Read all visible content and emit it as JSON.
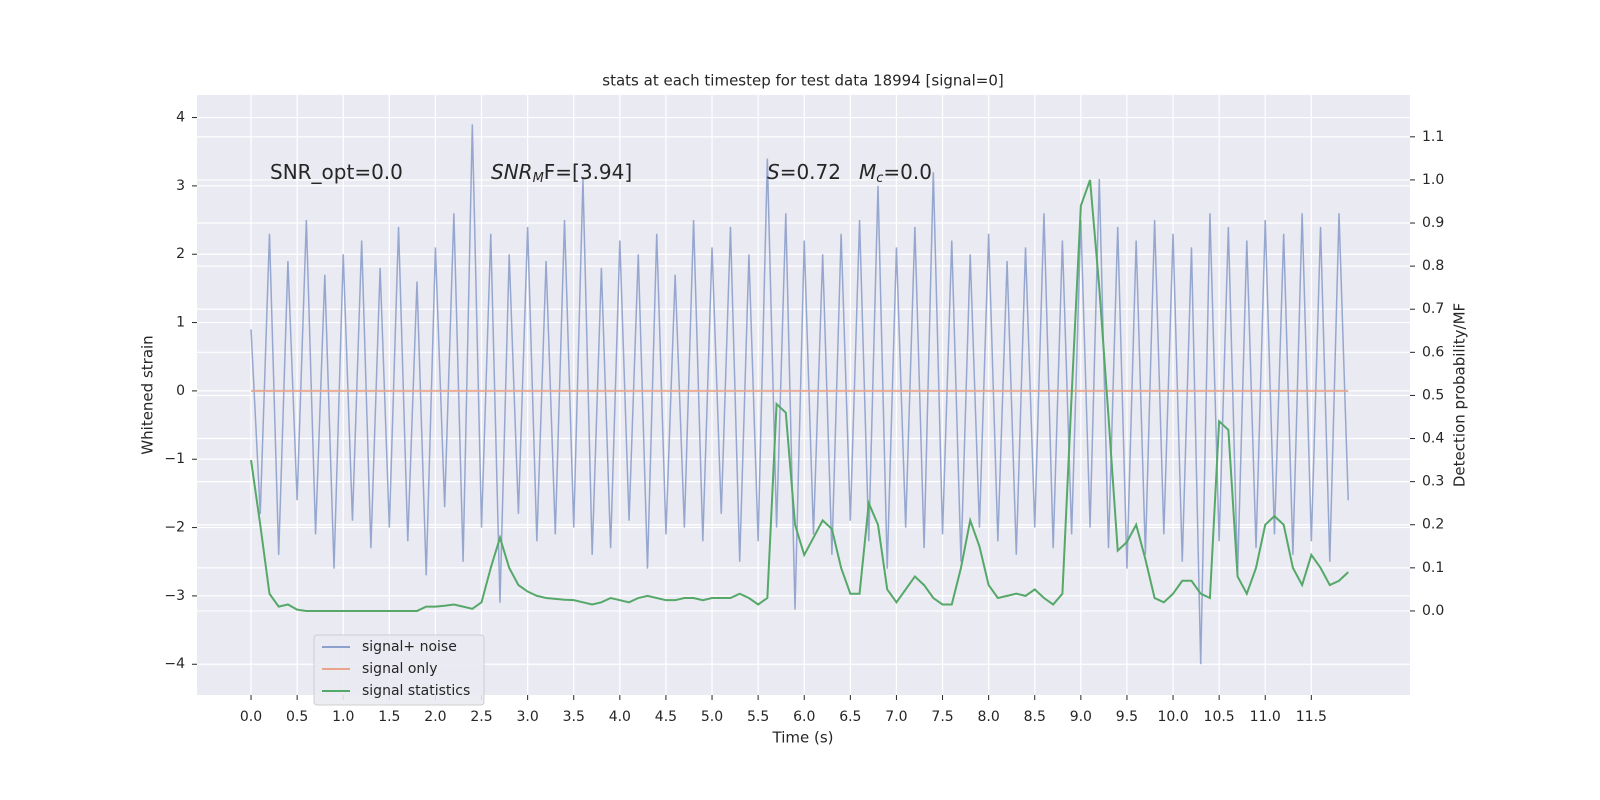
{
  "chart_data": {
    "type": "line",
    "title": "stats at each timestep for test data 18994 [signal=0]",
    "xlabel": "Time (s)",
    "ylabel": "Whitened strain",
    "y2label": "Detection probability/MF",
    "annotations": [
      {
        "text": "SNR_opt=0.0"
      },
      {
        "italic": "SNR",
        "sub": "M",
        "rest": "F=[3.94]"
      },
      {
        "italic": "S",
        "rest": "=0.72"
      },
      {
        "italic": "M",
        "sub": "c",
        "rest": "=0.0"
      }
    ],
    "x": [
      0,
      0.1,
      0.2,
      0.3,
      0.4,
      0.5,
      0.6,
      0.7,
      0.8,
      0.9,
      1,
      1.1,
      1.2,
      1.3,
      1.4,
      1.5,
      1.6,
      1.7,
      1.8,
      1.9,
      2,
      2.1,
      2.2,
      2.3,
      2.4,
      2.5,
      2.6,
      2.7,
      2.8,
      2.9,
      3,
      3.1,
      3.2,
      3.3,
      3.4,
      3.5,
      3.6,
      3.7,
      3.8,
      3.9,
      4,
      4.1,
      4.2,
      4.3,
      4.4,
      4.5,
      4.6,
      4.7,
      4.8,
      4.9,
      5,
      5.1,
      5.2,
      5.3,
      5.4,
      5.5,
      5.6,
      5.7,
      5.8,
      5.9,
      6,
      6.1,
      6.2,
      6.3,
      6.4,
      6.5,
      6.6,
      6.7,
      6.8,
      6.9,
      7,
      7.1,
      7.2,
      7.3,
      7.4,
      7.5,
      7.6,
      7.7,
      7.8,
      7.9,
      8,
      8.1,
      8.2,
      8.3,
      8.4,
      8.5,
      8.6,
      8.7,
      8.8,
      8.9,
      9,
      9.1,
      9.2,
      9.3,
      9.4,
      9.5,
      9.6,
      9.7,
      9.8,
      9.9,
      10,
      10.1,
      10.2,
      10.3,
      10.4,
      10.5,
      10.6,
      10.7,
      10.8,
      10.9,
      11,
      11.1,
      11.2,
      11.3,
      11.4,
      11.5,
      11.6,
      11.7,
      11.8,
      11.9
    ],
    "series": [
      {
        "name": "signal+ noise",
        "color": "#8da0cb",
        "values": [
          0.9,
          -1.8,
          2.3,
          -2.4,
          1.9,
          -1.6,
          2.5,
          -2.1,
          1.7,
          -2.6,
          2.0,
          -1.9,
          2.2,
          -2.3,
          1.8,
          -2.0,
          2.4,
          -2.2,
          1.6,
          -2.7,
          2.1,
          -1.7,
          2.6,
          -2.5,
          3.9,
          -2.0,
          2.3,
          -3.1,
          2.0,
          -1.8,
          2.4,
          -2.2,
          1.9,
          -2.1,
          2.5,
          -2.0,
          3.1,
          -2.4,
          1.8,
          -2.3,
          2.2,
          -1.9,
          2.0,
          -2.6,
          2.3,
          -2.1,
          1.7,
          -2.0,
          2.5,
          -2.2,
          2.1,
          -1.8,
          2.4,
          -2.5,
          2.0,
          -2.2,
          3.4,
          -2.0,
          2.6,
          -3.2,
          2.2,
          -2.1,
          2.0,
          -2.4,
          2.3,
          -1.9,
          2.5,
          -2.2,
          3.0,
          -2.6,
          2.1,
          -2.0,
          2.4,
          -2.3,
          3.2,
          -2.1,
          2.2,
          -2.5,
          2.0,
          -2.0,
          2.3,
          -2.2,
          1.9,
          -2.4,
          2.1,
          -2.0,
          2.6,
          -2.3,
          2.2,
          -2.1,
          2.5,
          -2.0,
          3.1,
          -2.3,
          2.4,
          -2.6,
          2.2,
          -2.4,
          2.5,
          -2.1,
          2.3,
          -2.5,
          2.1,
          -4.0,
          2.6,
          -2.2,
          2.4,
          -2.7,
          2.2,
          -2.3,
          2.5,
          -2.1,
          2.3,
          -2.4,
          2.6,
          -2.2,
          2.4,
          -2.5,
          2.6,
          -1.6
        ]
      },
      {
        "name": "signal only",
        "color": "#e8a58c",
        "values": [
          0,
          0,
          0,
          0,
          0,
          0,
          0,
          0,
          0,
          0,
          0,
          0,
          0,
          0,
          0,
          0,
          0,
          0,
          0,
          0,
          0,
          0,
          0,
          0,
          0,
          0,
          0,
          0,
          0,
          0,
          0,
          0,
          0,
          0,
          0,
          0,
          0,
          0,
          0,
          0,
          0,
          0,
          0,
          0,
          0,
          0,
          0,
          0,
          0,
          0,
          0,
          0,
          0,
          0,
          0,
          0,
          0,
          0,
          0,
          0,
          0,
          0,
          0,
          0,
          0,
          0,
          0,
          0,
          0,
          0,
          0,
          0,
          0,
          0,
          0,
          0,
          0,
          0,
          0,
          0,
          0,
          0,
          0,
          0,
          0,
          0,
          0,
          0,
          0,
          0,
          0,
          0,
          0,
          0,
          0,
          0,
          0,
          0,
          0,
          0,
          0,
          0,
          0,
          0,
          0,
          0,
          0,
          0,
          0,
          0,
          0,
          0,
          0,
          0,
          0,
          0,
          0,
          0,
          0,
          0
        ]
      },
      {
        "name": "signal statistics",
        "color": "#55a868",
        "axis": "y2",
        "values": [
          0.35,
          0.2,
          0.04,
          0.01,
          0.015,
          0.003,
          0,
          0,
          0,
          0,
          0,
          0,
          0,
          0,
          0,
          0,
          0,
          0,
          0,
          0.01,
          0.01,
          0.012,
          0.015,
          0.01,
          0.005,
          0.02,
          0.1,
          0.17,
          0.1,
          0.06,
          0.045,
          0.035,
          0.03,
          0.028,
          0.026,
          0.025,
          0.02,
          0.015,
          0.02,
          0.03,
          0.025,
          0.02,
          0.03,
          0.035,
          0.03,
          0.025,
          0.025,
          0.03,
          0.03,
          0.025,
          0.03,
          0.03,
          0.03,
          0.04,
          0.03,
          0.015,
          0.03,
          0.48,
          0.46,
          0.2,
          0.13,
          0.17,
          0.21,
          0.19,
          0.1,
          0.04,
          0.04,
          0.25,
          0.2,
          0.05,
          0.02,
          0.05,
          0.08,
          0.06,
          0.03,
          0.015,
          0.015,
          0.1,
          0.21,
          0.15,
          0.06,
          0.03,
          0.035,
          0.04,
          0.035,
          0.05,
          0.03,
          0.015,
          0.04,
          0.5,
          0.94,
          1.0,
          0.75,
          0.45,
          0.14,
          0.16,
          0.2,
          0.12,
          0.03,
          0.02,
          0.04,
          0.07,
          0.07,
          0.04,
          0.03,
          0.44,
          0.42,
          0.08,
          0.04,
          0.1,
          0.2,
          0.22,
          0.2,
          0.1,
          0.06,
          0.13,
          0.1,
          0.06,
          0.07,
          0.09
        ]
      }
    ],
    "xlim": [
      -0.586,
      12.57
    ],
    "xticks": [
      {
        "value": 0,
        "label": "0.0"
      },
      {
        "value": 0.5,
        "label": "0.5"
      },
      {
        "value": 1,
        "label": "1.0"
      },
      {
        "value": 1.5,
        "label": "1.5"
      },
      {
        "value": 2,
        "label": "2.0"
      },
      {
        "value": 2.5,
        "label": "2.5"
      },
      {
        "value": 3,
        "label": "3.0"
      },
      {
        "value": 3.5,
        "label": "3.5"
      },
      {
        "value": 4,
        "label": "4.0"
      },
      {
        "value": 4.5,
        "label": "4.5"
      },
      {
        "value": 5,
        "label": "5.0"
      },
      {
        "value": 5.5,
        "label": "5.5"
      },
      {
        "value": 6,
        "label": "6.0"
      },
      {
        "value": 6.5,
        "label": "6.5"
      },
      {
        "value": 7,
        "label": "7.0"
      },
      {
        "value": 7.5,
        "label": "7.5"
      },
      {
        "value": 8,
        "label": "8.0"
      },
      {
        "value": 8.5,
        "label": "8.5"
      },
      {
        "value": 9,
        "label": "9.0"
      },
      {
        "value": 9.5,
        "label": "9.5"
      },
      {
        "value": 10,
        "label": "10.0"
      },
      {
        "value": 10.5,
        "label": "10.5"
      },
      {
        "value": 11,
        "label": "11.0"
      },
      {
        "value": 11.5,
        "label": "11.5"
      }
    ],
    "ylim": [
      -4.45,
      4.33
    ],
    "yticks": [
      {
        "value": -4,
        "label": "−4"
      },
      {
        "value": -3,
        "label": "−3"
      },
      {
        "value": -2,
        "label": "−2"
      },
      {
        "value": -1,
        "label": "−1"
      },
      0,
      1,
      2,
      3,
      4
    ],
    "y2lim": [
      -0.195,
      1.197
    ],
    "y2ticks": [
      {
        "value": 0,
        "label": "0.0"
      },
      {
        "value": 0.1,
        "label": "0.1"
      },
      {
        "value": 0.2,
        "label": "0.2"
      },
      {
        "value": 0.3,
        "label": "0.3"
      },
      {
        "value": 0.4,
        "label": "0.4"
      },
      {
        "value": 0.5,
        "label": "0.5"
      },
      {
        "value": 0.6,
        "label": "0.6"
      },
      {
        "value": 0.7,
        "label": "0.7"
      },
      {
        "value": 0.8,
        "label": "0.8"
      },
      {
        "value": 0.9,
        "label": "0.9"
      },
      {
        "value": 1,
        "label": "1.0"
      },
      {
        "value": 1.1,
        "label": "1.1"
      }
    ],
    "grid": true,
    "legend": "lower left"
  }
}
